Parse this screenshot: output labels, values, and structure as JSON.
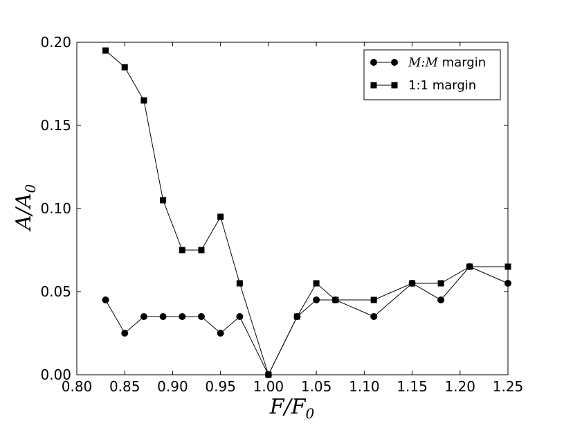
{
  "chart_data": {
    "type": "line",
    "title": "",
    "xlabel": "F/F0",
    "ylabel": "A/A0",
    "xlim": [
      0.8,
      1.25
    ],
    "ylim": [
      0.0,
      0.2
    ],
    "xticks": [
      "0.80",
      "0.85",
      "0.90",
      "0.95",
      "1.00",
      "1.05",
      "1.10",
      "1.15",
      "1.20",
      "1.25"
    ],
    "yticks": [
      "0.00",
      "0.05",
      "0.10",
      "0.15",
      "0.20"
    ],
    "grid": false,
    "legend": {
      "position": "top-right"
    },
    "series": [
      {
        "name": "M:M margin",
        "marker": "circle",
        "x": [
          0.83,
          0.85,
          0.87,
          0.89,
          0.91,
          0.93,
          0.95,
          0.97,
          1.0,
          1.03,
          1.05,
          1.07,
          1.11,
          1.15,
          1.18,
          1.21,
          1.25
        ],
        "y": [
          0.045,
          0.025,
          0.035,
          0.035,
          0.035,
          0.035,
          0.025,
          0.035,
          0.0,
          0.035,
          0.045,
          0.045,
          0.035,
          0.055,
          0.045,
          0.065,
          0.055
        ]
      },
      {
        "name": "1:1 margin",
        "marker": "square",
        "x": [
          0.83,
          0.85,
          0.87,
          0.89,
          0.91,
          0.93,
          0.95,
          0.97,
          1.0,
          1.03,
          1.05,
          1.07,
          1.11,
          1.15,
          1.18,
          1.21,
          1.25
        ],
        "y": [
          0.195,
          0.185,
          0.165,
          0.105,
          0.075,
          0.075,
          0.095,
          0.055,
          0.0,
          0.035,
          0.055,
          0.045,
          0.045,
          0.055,
          0.055,
          0.065,
          0.065
        ]
      }
    ]
  }
}
